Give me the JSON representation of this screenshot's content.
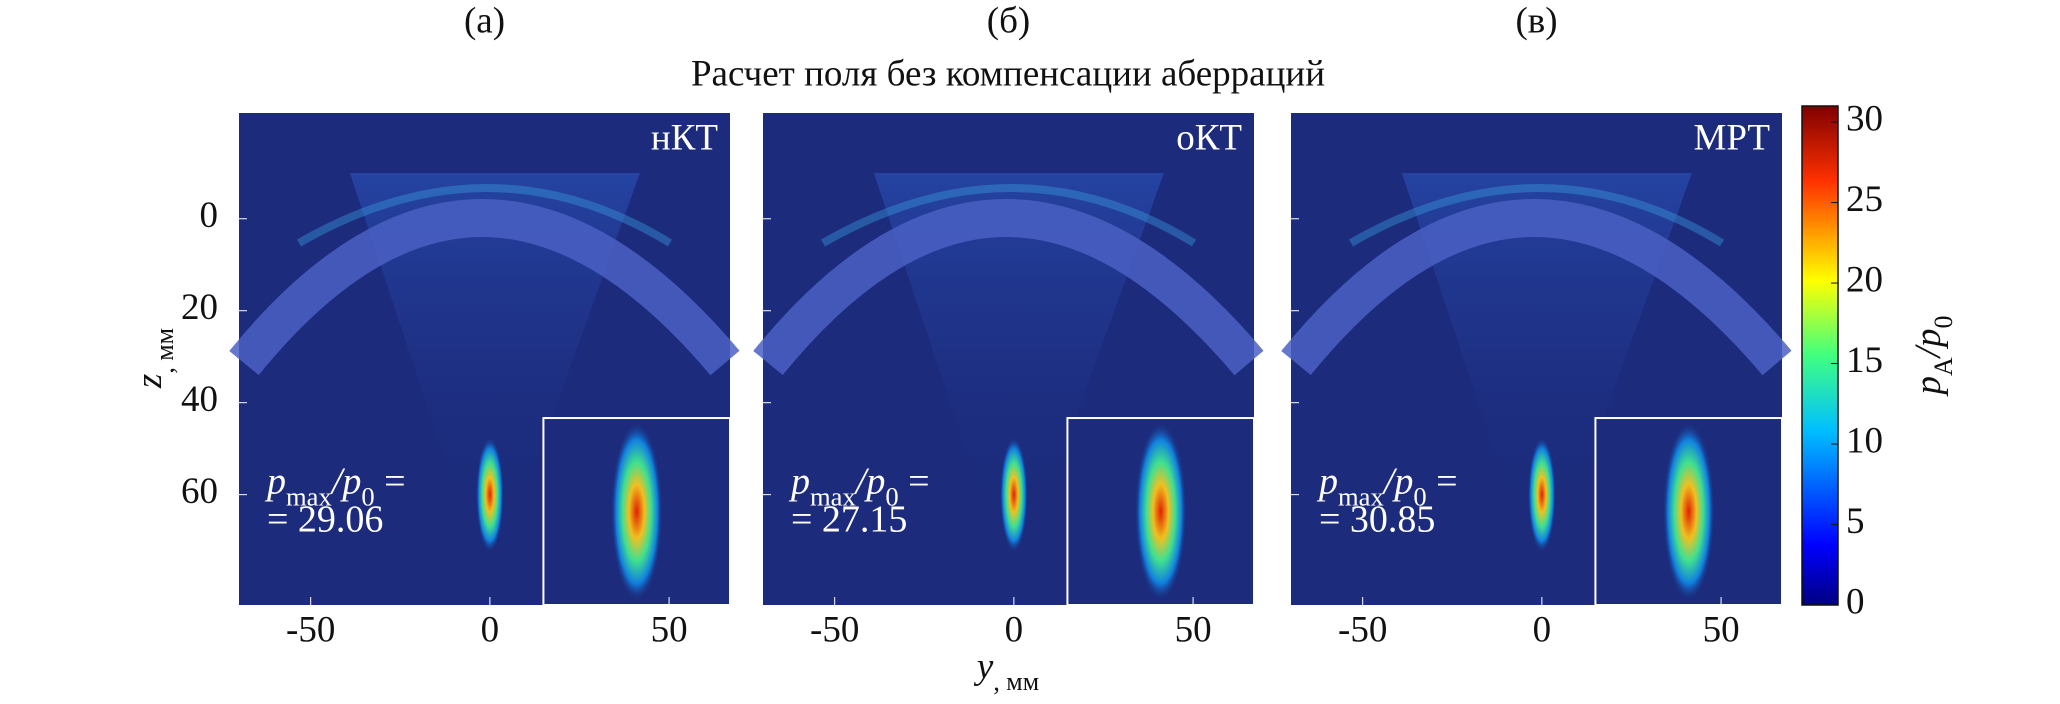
{
  "figure": {
    "title": "Расчет поля без компенсации аберраций",
    "x_label_parts": [
      "y",
      ", мм"
    ],
    "y_label_parts": [
      "z",
      ", мм"
    ]
  },
  "chart_data": [
    {
      "type": "heatmap",
      "panel_label": "(а)",
      "corner_label": "нКТ",
      "annotation": {
        "parts": [
          "p",
          "max",
          "/p",
          "0",
          " ="
        ],
        "value": 29.06,
        "value_label": "= 29.06"
      },
      "xlim": [
        -70,
        67
      ],
      "xticks": [
        -50,
        0,
        50
      ],
      "ylim": [
        -23,
        84
      ],
      "yticks": [
        0,
        20,
        40,
        60
      ]
    },
    {
      "type": "heatmap",
      "panel_label": "(б)",
      "corner_label": "оКТ",
      "annotation": {
        "parts": [
          "p",
          "max",
          "/p",
          "0",
          " ="
        ],
        "value": 27.15,
        "value_label": "= 27.15"
      },
      "xlim": [
        -70,
        67
      ],
      "xticks": [
        -50,
        0,
        50
      ],
      "ylim": [
        -23,
        84
      ],
      "yticks": [
        0,
        20,
        40,
        60
      ]
    },
    {
      "type": "heatmap",
      "panel_label": "(в)",
      "corner_label": "МРТ",
      "annotation": {
        "parts": [
          "p",
          "max",
          "/p",
          "0",
          " ="
        ],
        "value": 30.85,
        "value_label": "= 30.85"
      },
      "xlim": [
        -70,
        67
      ],
      "xticks": [
        -50,
        0,
        50
      ],
      "ylim": [
        -23,
        84
      ],
      "yticks": [
        0,
        20,
        40,
        60
      ]
    }
  ],
  "colorbar": {
    "label_parts": [
      "p",
      "A",
      "/p",
      "0"
    ],
    "clim": [
      0,
      31
    ],
    "ticks": [
      0,
      5,
      10,
      15,
      20,
      25,
      30
    ]
  }
}
